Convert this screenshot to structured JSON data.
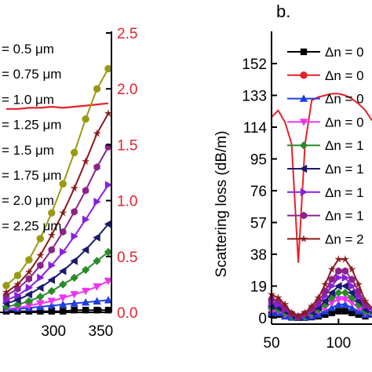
{
  "panel_label_b": "b.",
  "colors": {
    "black": "#000000",
    "red": "#e8202a",
    "blue": "#1f3fdc",
    "magenta": "#f032f0",
    "green": "#2a8a2a",
    "navy": "#1a1a6e",
    "violet": "#8a1fdc",
    "purple": "#8b238b",
    "maroon": "#8b1a1a",
    "olive": "#999a12"
  },
  "chart_data": [
    {
      "panel": "left",
      "type": "line",
      "x_ticks": [
        "300",
        "350"
      ],
      "right_y_ticks": [
        "0.0",
        "0.5",
        "1.0",
        "1.5",
        "2.0",
        "2.5"
      ],
      "right_ylim": [
        0,
        2.5
      ],
      "x": [
        250,
        262,
        274,
        286,
        298,
        310,
        322,
        334,
        346,
        358
      ],
      "legend_entries": [
        "= 0.5 μm",
        "= 0.75 μm",
        "= 1.0 μm",
        "= 1.25 μm",
        "= 1.5 μm",
        "= 1.75 μm",
        "= 2.0 μm",
        "= 2.25 μm"
      ],
      "series": [
        {
          "color": "black",
          "marker": "square",
          "values": [
            0.01,
            0.01,
            0.01,
            0.01,
            0.01,
            0.01,
            0.02,
            0.02,
            0.02,
            0.02
          ]
        },
        {
          "color": "red",
          "marker": "none",
          "values": [
            1.82,
            1.82,
            1.83,
            1.83,
            1.84,
            1.83,
            1.84,
            1.85,
            1.86,
            1.87
          ]
        },
        {
          "color": "blue",
          "marker": "triangle",
          "values": [
            0.02,
            0.03,
            0.04,
            0.05,
            0.06,
            0.07,
            0.08,
            0.09,
            0.1,
            0.11
          ]
        },
        {
          "color": "magenta",
          "marker": "tri-down",
          "values": [
            0.03,
            0.04,
            0.06,
            0.08,
            0.1,
            0.13,
            0.16,
            0.19,
            0.23,
            0.28
          ]
        },
        {
          "color": "green",
          "marker": "diamond",
          "values": [
            0.05,
            0.07,
            0.1,
            0.14,
            0.19,
            0.25,
            0.31,
            0.38,
            0.46,
            0.54
          ]
        },
        {
          "color": "navy",
          "marker": "tri-left",
          "values": [
            0.08,
            0.11,
            0.16,
            0.22,
            0.29,
            0.37,
            0.46,
            0.56,
            0.67,
            0.79
          ]
        },
        {
          "color": "violet",
          "marker": "tri-right",
          "values": [
            0.11,
            0.15,
            0.22,
            0.31,
            0.42,
            0.54,
            0.68,
            0.83,
            0.99,
            1.14
          ]
        },
        {
          "color": "purple",
          "marker": "hexagon",
          "values": [
            0.15,
            0.21,
            0.3,
            0.42,
            0.56,
            0.72,
            0.9,
            1.09,
            1.3,
            1.48
          ]
        },
        {
          "color": "maroon",
          "marker": "star",
          "values": [
            0.18,
            0.25,
            0.36,
            0.51,
            0.69,
            0.89,
            1.11,
            1.35,
            1.6,
            1.78
          ]
        },
        {
          "color": "olive",
          "marker": "circle",
          "values": [
            0.24,
            0.33,
            0.47,
            0.66,
            0.89,
            1.15,
            1.43,
            1.73,
            2.0,
            2.18
          ]
        }
      ]
    },
    {
      "panel": "right",
      "type": "line",
      "ylabel": "Scattering loss (dB/m)",
      "y_ticks": [
        "0",
        "19",
        "38",
        "57",
        "76",
        "95",
        "114",
        "133",
        "152"
      ],
      "ylim": [
        0,
        167
      ],
      "x_ticks": [
        "50",
        "100"
      ],
      "xlim": [
        50,
        125
      ],
      "legend_entries": [
        "Δn = 0",
        "Δn = 0",
        "Δn = 0",
        "Δn = 0",
        "Δn = 1",
        "Δn = 1",
        "Δn = 1",
        "Δn = 1",
        "Δn = 2"
      ],
      "x": [
        50,
        55,
        60,
        65,
        70,
        75,
        80,
        85,
        90,
        95,
        100,
        105,
        110,
        115,
        120,
        125
      ],
      "series": [
        {
          "color": "black",
          "marker": "square",
          "values": [
            2,
            2,
            1,
            0.3,
            0.1,
            0.2,
            0.5,
            1,
            2,
            3,
            4,
            4,
            3,
            2,
            1,
            0.5
          ]
        },
        {
          "color": "red",
          "marker": "circle-once",
          "values": [
            120,
            124,
            117,
            104,
            33,
            104,
            130,
            132,
            133,
            134,
            134,
            133,
            131,
            128,
            124,
            118
          ]
        },
        {
          "color": "blue",
          "marker": "triangle",
          "values": [
            3,
            3,
            1,
            0.5,
            0.2,
            0.5,
            1,
            2,
            4,
            6,
            8,
            8,
            6,
            4,
            2,
            1
          ]
        },
        {
          "color": "magenta",
          "marker": "tri-down",
          "values": [
            4,
            4,
            2,
            0.8,
            0.3,
            0.8,
            2,
            4,
            6,
            9,
            11,
            11,
            9,
            6,
            3,
            2
          ]
        },
        {
          "color": "green",
          "marker": "diamond",
          "values": [
            6,
            5,
            3,
            1,
            0.4,
            1,
            3,
            5,
            8,
            12,
            15,
            15,
            12,
            8,
            4,
            2
          ]
        },
        {
          "color": "navy",
          "marker": "tri-left",
          "values": [
            7,
            6,
            4,
            1.5,
            0.5,
            1.5,
            3.5,
            6,
            10,
            15,
            19,
            19,
            15,
            10,
            5,
            3
          ]
        },
        {
          "color": "violet",
          "marker": "tri-right",
          "values": [
            9,
            8,
            5,
            2,
            0.6,
            2,
            4.5,
            8,
            13,
            19,
            24,
            24,
            19,
            13,
            7,
            4
          ]
        },
        {
          "color": "purple",
          "marker": "hexagon",
          "values": [
            11,
            10,
            6,
            2.5,
            0.8,
            2.5,
            5.5,
            10,
            16,
            23,
            28,
            28,
            23,
            16,
            8,
            5
          ]
        },
        {
          "color": "maroon",
          "marker": "star",
          "values": [
            14,
            12,
            8,
            3,
            1,
            3,
            7,
            12,
            20,
            29,
            35,
            35,
            29,
            20,
            10,
            6
          ]
        }
      ]
    }
  ]
}
